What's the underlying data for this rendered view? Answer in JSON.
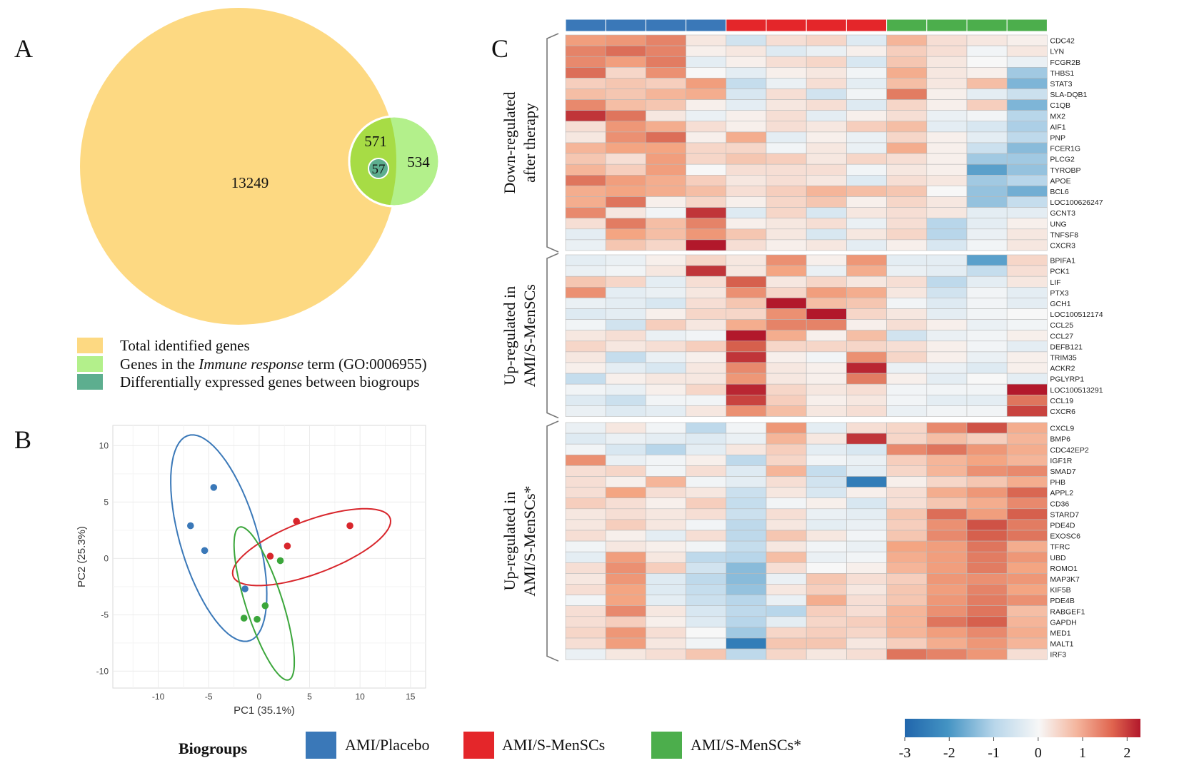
{
  "panels": {
    "a": "A",
    "b": "B",
    "c": "C"
  },
  "venn": {
    "total": "13249",
    "immune_overlap": "571",
    "immune_only": "534",
    "deg": "57",
    "colors": {
      "total": "#FDD982",
      "immune": "#B3F08B",
      "overlap": "#A7DC45",
      "deg": "#5DAE8F"
    },
    "legend": [
      {
        "text": "Total identified genes",
        "color": "#FDD982"
      },
      {
        "pre": "Genes in the ",
        "italic": "Immune response",
        "post": " term (GO:0006955)",
        "color": "#B3F08B"
      },
      {
        "text": "Differentially expressed genes between biogroups",
        "color": "#5DAE8F"
      }
    ]
  },
  "chart_data": {
    "type": "scatter",
    "title": "",
    "xlabel": "PC1 (35.1%)",
    "ylabel": "PC2 (25.3%)",
    "xlim": [
      -14.5,
      16.5
    ],
    "ylim": [
      -11.5,
      11.8
    ],
    "xticks": [
      "-10",
      "-5",
      "0",
      "5",
      "10",
      "15"
    ],
    "yticks": [
      "10",
      "5",
      "0",
      "-5",
      "-10"
    ],
    "grid": true,
    "series": [
      {
        "name": "AMI/Placebo",
        "color": "#3A78B8",
        "points": [
          [
            -4.5,
            6.3
          ],
          [
            -6.8,
            2.9
          ],
          [
            -5.4,
            0.7
          ],
          [
            -1.4,
            -2.7
          ]
        ],
        "ellipse": {
          "cx": -4.0,
          "cy": 1.8,
          "rx": 9.6,
          "ry": 3.8,
          "angle": -71
        }
      },
      {
        "name": "AMI/S-MenSCs",
        "color": "#D8262C",
        "points": [
          [
            3.7,
            3.3
          ],
          [
            9.0,
            2.9
          ],
          [
            2.8,
            1.1
          ],
          [
            1.1,
            0.2
          ]
        ],
        "ellipse": {
          "cx": 5.2,
          "cy": 1.0,
          "rx": 8.2,
          "ry": 2.4,
          "angle": 18
        }
      },
      {
        "name": "AMI/S-MenSCs*",
        "color": "#3BA63B",
        "points": [
          [
            2.1,
            -0.2
          ],
          [
            -1.5,
            -5.3
          ],
          [
            -0.2,
            -5.4
          ],
          [
            0.6,
            -4.2
          ]
        ],
        "ellipse": {
          "cx": 0.5,
          "cy": -4.0,
          "rx": 7.2,
          "ry": 1.8,
          "angle": -70
        }
      }
    ]
  },
  "legend": {
    "title": "Biogroups",
    "items": [
      {
        "label": "AMI/Placebo",
        "color": "#3A78B8"
      },
      {
        "label": "AMI/S-MenSCs",
        "color": "#E4262A"
      },
      {
        "label": "AMI/S-MenSCs*",
        "color": "#4CAE4C"
      }
    ]
  },
  "heatmap": {
    "group_colors": [
      "#3A78B8",
      "#3A78B8",
      "#3A78B8",
      "#3A78B8",
      "#E4262A",
      "#E4262A",
      "#E4262A",
      "#E4262A",
      "#4CAE4C",
      "#4CAE4C",
      "#4CAE4C",
      "#4CAE4C"
    ],
    "blocks": [
      {
        "label_lines": [
          "Down-regulated",
          "after therapy"
        ],
        "genes": [
          "CDC42",
          "LYN",
          "FCGR2B",
          "THBS1",
          "STAT3",
          "SLA-DQB1",
          "C1QB",
          "MX2",
          "AIF1",
          "PNP",
          "FCER1G",
          "PLCG2",
          "TYROBP",
          "APOE",
          "BCL6",
          "LOC100626247",
          "GCNT3",
          "UNG",
          "TNFSF8",
          "CXCR3"
        ],
        "values": [
          [
            1.1,
            1.2,
            1.5,
            0.2,
            -0.6,
            0.3,
            0.4,
            -0.4,
            0.8,
            0.3,
            0.2,
            0.1
          ],
          [
            1.5,
            1.8,
            1.5,
            0.1,
            0.2,
            -0.4,
            -0.2,
            0.1,
            0.5,
            0.3,
            -0.1,
            0.2
          ],
          [
            1.4,
            1.1,
            1.6,
            -0.3,
            0.1,
            0.3,
            0.4,
            -0.5,
            0.6,
            0.2,
            0.0,
            -0.2
          ],
          [
            1.8,
            0.4,
            1.3,
            0.0,
            -0.3,
            0.1,
            0.2,
            -0.1,
            0.9,
            0.2,
            0.1,
            -1.2
          ],
          [
            0.5,
            0.6,
            0.5,
            1.1,
            -0.8,
            -0.2,
            0.3,
            -0.3,
            0.7,
            0.2,
            0.7,
            -1.5
          ],
          [
            0.7,
            0.6,
            0.8,
            0.9,
            -0.5,
            0.3,
            -0.6,
            -0.1,
            1.6,
            0.1,
            -0.3,
            -0.7
          ],
          [
            1.4,
            0.7,
            0.6,
            0.1,
            -0.3,
            0.2,
            0.3,
            -0.4,
            0.4,
            0.1,
            0.5,
            -1.5
          ],
          [
            2.3,
            1.7,
            0.2,
            -0.2,
            0.1,
            0.3,
            -0.3,
            0.1,
            0.3,
            -0.2,
            -0.1,
            -1.0
          ],
          [
            0.3,
            1.2,
            0.9,
            0.3,
            0.1,
            0.3,
            0.2,
            0.5,
            0.7,
            -0.3,
            -0.5,
            -1.1
          ],
          [
            0.2,
            1.3,
            1.8,
            0.1,
            0.9,
            -0.3,
            0.1,
            -0.2,
            0.4,
            0.1,
            -0.3,
            -0.9
          ],
          [
            0.8,
            1.0,
            1.0,
            0.4,
            0.4,
            -0.1,
            0.2,
            -0.2,
            0.9,
            0.1,
            -0.7,
            -1.4
          ],
          [
            0.6,
            0.3,
            1.1,
            0.4,
            0.6,
            0.5,
            0.2,
            0.4,
            0.3,
            0.1,
            -1.2,
            -1.2
          ],
          [
            0.8,
            0.5,
            1.1,
            0.0,
            0.3,
            0.3,
            0.3,
            -0.1,
            0.2,
            0.1,
            -1.8,
            -1.3
          ],
          [
            1.7,
            1.1,
            0.9,
            0.5,
            0.2,
            0.3,
            0.2,
            -0.4,
            0.3,
            0.2,
            -1.2,
            -1.0
          ],
          [
            0.9,
            1.0,
            0.9,
            0.7,
            0.3,
            0.5,
            0.8,
            0.7,
            0.6,
            0.0,
            -1.3,
            -1.6
          ],
          [
            0.9,
            1.7,
            0.1,
            0.4,
            0.1,
            0.4,
            0.6,
            0.1,
            0.4,
            0.2,
            -1.3,
            -0.8
          ],
          [
            1.4,
            0.2,
            -0.1,
            2.3,
            -0.4,
            0.4,
            -0.5,
            0.2,
            0.3,
            0.2,
            -0.3,
            -0.3
          ],
          [
            0.3,
            1.6,
            0.7,
            1.5,
            0.1,
            0.2,
            0.3,
            -0.2,
            0.3,
            -1.0,
            -0.3,
            0.1
          ],
          [
            -0.3,
            1.0,
            0.7,
            1.2,
            0.6,
            0.2,
            -0.5,
            0.2,
            0.4,
            -1.0,
            -0.2,
            0.2
          ],
          [
            -0.2,
            0.6,
            0.4,
            2.6,
            0.3,
            0.1,
            0.2,
            -0.3,
            0.1,
            -0.5,
            -0.1,
            0.2
          ]
        ]
      },
      {
        "label_lines": [
          "Up-regulated in",
          "AMI/S-MenSCs"
        ],
        "genes": [
          "BPIFA1",
          "PCK1",
          "LIF",
          "PTX3",
          "GCH1",
          "LOC100512174",
          "CCL25",
          "CCL27",
          "DEFB121",
          "TRIM35",
          "ACKR2",
          "PGLYRP1",
          "LOC100513291",
          "CCL19",
          "CXCR6"
        ],
        "values": [
          [
            -0.3,
            -0.2,
            0.1,
            0.4,
            0.2,
            1.3,
            0.1,
            1.2,
            -0.3,
            -0.3,
            -1.8,
            0.4
          ],
          [
            -0.2,
            -0.1,
            0.2,
            2.3,
            0.2,
            1.0,
            -0.2,
            0.9,
            -0.2,
            -0.3,
            -0.8,
            0.3
          ],
          [
            0.6,
            0.4,
            -0.3,
            0.3,
            2.0,
            0.2,
            0.4,
            0.2,
            0.3,
            -0.9,
            -0.3,
            0.2
          ],
          [
            1.3,
            -0.3,
            -0.2,
            0.2,
            1.3,
            0.4,
            1.1,
            0.9,
            0.2,
            -0.6,
            -0.1,
            -0.3
          ],
          [
            -0.2,
            -0.3,
            -0.5,
            0.3,
            0.6,
            2.6,
            0.7,
            0.6,
            -0.1,
            -0.4,
            -0.1,
            -0.3
          ],
          [
            -0.4,
            -0.3,
            0.1,
            0.4,
            0.4,
            1.3,
            2.5,
            0.4,
            0.2,
            -0.3,
            -0.1,
            0.0
          ],
          [
            -0.1,
            -0.6,
            0.5,
            0.2,
            0.9,
            1.5,
            1.5,
            0.1,
            0.3,
            0.1,
            -0.2,
            -0.1
          ],
          [
            0.2,
            0.3,
            -0.2,
            -0.1,
            2.6,
            0.9,
            0.1,
            0.7,
            -0.6,
            -0.2,
            -0.1,
            0.1
          ],
          [
            0.4,
            0.2,
            0.3,
            0.5,
            2.0,
            0.4,
            0.4,
            0.4,
            0.3,
            0.1,
            -0.1,
            -0.3
          ],
          [
            0.2,
            -0.8,
            -0.2,
            0.1,
            2.3,
            0.1,
            -0.1,
            1.3,
            0.4,
            0.1,
            -0.2,
            0.1
          ],
          [
            0.1,
            -0.3,
            -0.5,
            0.2,
            1.4,
            0.2,
            0.1,
            2.4,
            -0.2,
            -0.2,
            -0.4,
            0.1
          ],
          [
            -0.8,
            0.1,
            0.2,
            0.2,
            1.2,
            0.2,
            0.1,
            1.6,
            0.1,
            -0.3,
            0.0,
            -0.3
          ],
          [
            -0.1,
            -0.2,
            0.1,
            0.4,
            2.4,
            0.4,
            0.2,
            0.3,
            -0.1,
            -0.1,
            -0.1,
            2.5
          ],
          [
            -0.4,
            -0.7,
            -0.1,
            -0.1,
            2.2,
            0.5,
            0.1,
            0.2,
            -0.1,
            -0.3,
            -0.3,
            1.7
          ],
          [
            -0.2,
            -0.4,
            -0.3,
            0.2,
            1.3,
            0.7,
            0.2,
            0.3,
            -0.2,
            -0.1,
            -0.1,
            2.2
          ]
        ]
      },
      {
        "label_lines": [
          "Up-regulated in",
          "AMI/S-MenSCs*"
        ],
        "genes": [
          "CXCL9",
          "BMP6",
          "CDC42EP2",
          "IGF1R",
          "SMAD7",
          "PHB",
          "APPL2",
          "CD36",
          "STARD7",
          "PDE4D",
          "EXOSC6",
          "TFRC",
          "UBD",
          "ROMO1",
          "MAP3K7",
          "KIF5B",
          "PDE4B",
          "RABGEF1",
          "GAPDH",
          "MED1",
          "MALT1",
          "IRF3"
        ],
        "values": [
          [
            -0.2,
            0.2,
            -0.1,
            -0.9,
            -0.1,
            1.2,
            -0.3,
            0.3,
            0.4,
            1.4,
            2.1,
            0.9
          ],
          [
            -0.4,
            -0.2,
            -0.3,
            -0.4,
            -0.2,
            0.8,
            0.2,
            2.3,
            0.4,
            0.7,
            0.5,
            0.8
          ],
          [
            -0.1,
            -0.5,
            -1.0,
            -0.3,
            0.2,
            0.5,
            -0.3,
            -0.5,
            1.4,
            1.7,
            1.2,
            0.9
          ],
          [
            1.3,
            -0.2,
            -0.1,
            0.1,
            -0.9,
            0.4,
            -0.1,
            -0.2,
            0.5,
            0.8,
            1.0,
            0.8
          ],
          [
            0.3,
            0.4,
            -0.1,
            0.3,
            -0.4,
            0.8,
            -0.8,
            -0.3,
            0.4,
            0.8,
            1.3,
            1.4
          ],
          [
            0.3,
            0.1,
            0.8,
            -0.1,
            -0.3,
            0.3,
            -0.6,
            -2.5,
            0.1,
            0.4,
            0.6,
            0.9
          ],
          [
            0.3,
            1.0,
            0.3,
            0.2,
            -0.7,
            0.2,
            -0.5,
            0.1,
            0.3,
            0.9,
            1.2,
            1.9
          ],
          [
            0.5,
            0.3,
            0.1,
            0.5,
            -0.8,
            -0.1,
            0.1,
            -0.5,
            0.3,
            0.6,
            0.9,
            1.4
          ],
          [
            0.2,
            0.3,
            0.2,
            0.3,
            -0.7,
            0.3,
            -0.2,
            -0.3,
            0.6,
            1.8,
            1.1,
            2.0
          ],
          [
            0.2,
            0.5,
            0.2,
            -0.1,
            -0.9,
            0.2,
            -0.3,
            -0.2,
            0.5,
            1.3,
            2.1,
            1.6
          ],
          [
            0.3,
            0.1,
            -0.3,
            0.3,
            -0.9,
            0.6,
            0.2,
            -0.1,
            0.6,
            1.4,
            2.0,
            1.7
          ],
          [
            -0.1,
            0.2,
            0.1,
            -0.1,
            -0.8,
            0.2,
            -0.1,
            -0.2,
            1.0,
            1.1,
            1.7,
            0.9
          ],
          [
            -0.3,
            1.1,
            0.2,
            -0.9,
            -1.0,
            0.7,
            -0.2,
            -0.1,
            0.9,
            1.1,
            1.6,
            1.2
          ],
          [
            0.3,
            1.3,
            0.5,
            -0.6,
            -1.4,
            0.3,
            0.0,
            0.1,
            0.8,
            1.1,
            1.6,
            1.0
          ],
          [
            0.2,
            1.2,
            -0.4,
            -0.9,
            -1.4,
            -0.2,
            0.6,
            0.3,
            0.5,
            1.2,
            1.3,
            1.2
          ],
          [
            0.3,
            1.0,
            -0.4,
            -0.8,
            -1.3,
            0.2,
            0.5,
            0.2,
            0.6,
            1.1,
            1.5,
            1.0
          ],
          [
            -0.1,
            1.0,
            -0.3,
            -0.7,
            -1.0,
            -0.2,
            0.9,
            0.3,
            0.6,
            1.2,
            1.6,
            1.3
          ],
          [
            0.3,
            1.4,
            0.2,
            -0.5,
            -0.9,
            -1.0,
            0.5,
            0.3,
            0.8,
            1.3,
            1.7,
            0.7
          ],
          [
            0.3,
            0.5,
            0.1,
            -0.4,
            -1.0,
            -0.3,
            0.4,
            0.5,
            0.8,
            1.7,
            2.0,
            0.8
          ],
          [
            0.4,
            1.2,
            0.3,
            0.0,
            -1.2,
            0.4,
            0.5,
            0.4,
            0.8,
            1.1,
            1.4,
            0.9
          ],
          [
            0.3,
            1.1,
            0.2,
            -0.1,
            -2.5,
            0.6,
            0.6,
            0.2,
            0.5,
            0.9,
            1.2,
            0.8
          ],
          [
            -0.2,
            0.2,
            0.3,
            0.6,
            -0.9,
            0.4,
            0.2,
            0.3,
            1.7,
            1.5,
            1.2,
            0.3
          ]
        ]
      }
    ],
    "colorbar": {
      "min": -3,
      "max": 2.3,
      "ticks": [
        "-3",
        "-2",
        "-1",
        "0",
        "1",
        "2"
      ],
      "tick_values": [
        -3,
        -2,
        -1,
        0,
        1,
        2
      ]
    },
    "colors": {
      "low": "#2166AC",
      "mid": "#F7F7F7",
      "high": "#B2182B"
    }
  }
}
